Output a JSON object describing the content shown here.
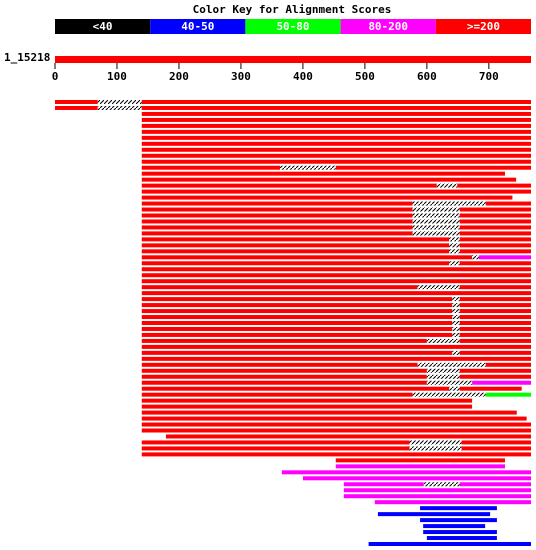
{
  "chart_data": {
    "type": "alignment",
    "title": "Color Key for Alignment Scores",
    "color_key": [
      {
        "label": "<40",
        "color": "#000000"
      },
      {
        "label": "40-50",
        "color": "#0000ff"
      },
      {
        "label": "50-80",
        "color": "#00ff00"
      },
      {
        "label": "80-200",
        "color": "#ff00ff"
      },
      {
        "label": ">=200",
        "color": "#ff0000"
      }
    ],
    "query": {
      "label": "1_15218",
      "range": [
        0,
        768
      ],
      "color": "#ff0000"
    },
    "xlim": [
      0,
      768
    ],
    "xticks": [
      0,
      100,
      200,
      300,
      400,
      500,
      600,
      700
    ],
    "rows": [
      [
        [
          0,
          69,
          "#ff0000"
        ],
        [
          140,
          768,
          "#ff0000"
        ]
      ],
      [
        [
          0,
          69,
          "#ff0000"
        ],
        [
          140,
          768,
          "#ff0000"
        ]
      ],
      [
        [
          140,
          768,
          "#ff0000"
        ]
      ],
      [
        [
          140,
          768,
          "#ff0000"
        ]
      ],
      [
        [
          140,
          768,
          "#ff0000"
        ]
      ],
      [
        [
          140,
          768,
          "#ff0000"
        ]
      ],
      [
        [
          140,
          768,
          "#ff0000"
        ]
      ],
      [
        [
          140,
          768,
          "#ff0000"
        ]
      ],
      [
        [
          140,
          768,
          "#ff0000"
        ]
      ],
      [
        [
          140,
          768,
          "#ff0000"
        ]
      ],
      [
        [
          140,
          768,
          "#ff0000"
        ]
      ],
      [
        [
          140,
          363,
          "#ff0000"
        ],
        [
          453,
          768,
          "#ff0000"
        ]
      ],
      [
        [
          140,
          726,
          "#ff0000"
        ]
      ],
      [
        [
          140,
          744,
          "#ff0000"
        ]
      ],
      [
        [
          140,
          616,
          "#ff0000"
        ],
        [
          649,
          768,
          "#ff0000"
        ]
      ],
      [
        [
          140,
          768,
          "#ff0000"
        ]
      ],
      [
        [
          140,
          738,
          "#ff0000"
        ]
      ],
      [
        [
          140,
          577,
          "#ff0000"
        ],
        [
          695,
          768,
          "#ff0000"
        ]
      ],
      [
        [
          140,
          577,
          "#ff0000"
        ],
        [
          653,
          768,
          "#ff0000"
        ]
      ],
      [
        [
          140,
          577,
          "#ff0000"
        ],
        [
          653,
          768,
          "#ff0000"
        ]
      ],
      [
        [
          140,
          577,
          "#ff0000"
        ],
        [
          653,
          768,
          "#ff0000"
        ]
      ],
      [
        [
          140,
          577,
          "#ff0000"
        ],
        [
          653,
          768,
          "#ff0000"
        ]
      ],
      [
        [
          140,
          577,
          "#ff0000"
        ],
        [
          653,
          768,
          "#ff0000"
        ]
      ],
      [
        [
          140,
          636,
          "#ff0000"
        ],
        [
          653,
          768,
          "#ff0000"
        ]
      ],
      [
        [
          140,
          636,
          "#ff0000"
        ],
        [
          653,
          768,
          "#ff0000"
        ]
      ],
      [
        [
          140,
          636,
          "#ff0000"
        ],
        [
          653,
          768,
          "#ff0000"
        ]
      ],
      [
        [
          140,
          673,
          "#ff0000"
        ],
        [
          684,
          768,
          "#ff00ff"
        ]
      ],
      [
        [
          140,
          636,
          "#ff0000"
        ],
        [
          653,
          768,
          "#ff0000"
        ]
      ],
      [
        [
          140,
          768,
          "#ff0000"
        ]
      ],
      [
        [
          140,
          768,
          "#ff0000"
        ]
      ],
      [
        [
          140,
          768,
          "#ff0000"
        ]
      ],
      [
        [
          140,
          585,
          "#ff0000"
        ],
        [
          653,
          768,
          "#ff0000"
        ]
      ],
      [
        [
          140,
          768,
          "#ff0000"
        ]
      ],
      [
        [
          140,
          641,
          "#ff0000"
        ],
        [
          653,
          768,
          "#ff0000"
        ]
      ],
      [
        [
          140,
          641,
          "#ff0000"
        ],
        [
          653,
          768,
          "#ff0000"
        ]
      ],
      [
        [
          140,
          641,
          "#ff0000"
        ],
        [
          653,
          768,
          "#ff0000"
        ]
      ],
      [
        [
          140,
          641,
          "#ff0000"
        ],
        [
          653,
          768,
          "#ff0000"
        ]
      ],
      [
        [
          140,
          641,
          "#ff0000"
        ],
        [
          653,
          768,
          "#ff0000"
        ]
      ],
      [
        [
          140,
          641,
          "#ff0000"
        ],
        [
          653,
          768,
          "#ff0000"
        ]
      ],
      [
        [
          140,
          641,
          "#ff0000"
        ],
        [
          653,
          768,
          "#ff0000"
        ]
      ],
      [
        [
          140,
          600,
          "#ff0000"
        ],
        [
          653,
          768,
          "#ff0000"
        ]
      ],
      [
        [
          140,
          768,
          "#ff0000"
        ]
      ],
      [
        [
          140,
          641,
          "#ff0000"
        ],
        [
          653,
          768,
          "#ff0000"
        ]
      ],
      [
        [
          140,
          768,
          "#ff0000"
        ]
      ],
      [
        [
          140,
          585,
          "#ff0000"
        ],
        [
          695,
          768,
          "#ff0000"
        ]
      ],
      [
        [
          140,
          600,
          "#ff0000"
        ],
        [
          653,
          768,
          "#ff0000"
        ]
      ],
      [
        [
          140,
          600,
          "#ff0000"
        ],
        [
          653,
          768,
          "#ff0000"
        ]
      ],
      [
        [
          140,
          600,
          "#ff0000"
        ],
        [
          673,
          768,
          "#ff00ff"
        ]
      ],
      [
        [
          140,
          636,
          "#ff0000"
        ],
        [
          653,
          753,
          "#ff0000"
        ]
      ],
      [
        [
          140,
          577,
          "#ff0000"
        ],
        [
          695,
          768,
          "#00ff00"
        ]
      ],
      [
        [
          140,
          673,
          "#ff0000"
        ]
      ],
      [
        [
          140,
          673,
          "#ff0000"
        ]
      ],
      [
        [
          140,
          745,
          "#ff0000"
        ]
      ],
      [
        [
          140,
          761,
          "#ff0000"
        ]
      ],
      [
        [
          140,
          768,
          "#ff0000"
        ]
      ],
      [
        [
          140,
          768,
          "#ff0000"
        ]
      ],
      [
        [
          179,
          768,
          "#ff0000"
        ]
      ],
      [
        [
          140,
          572,
          "#ff0000"
        ],
        [
          656,
          768,
          "#ff0000"
        ]
      ],
      [
        [
          140,
          572,
          "#ff0000"
        ],
        [
          656,
          768,
          "#ff0000"
        ]
      ],
      [
        [
          140,
          768,
          "#ff0000"
        ]
      ],
      [
        [
          453,
          726,
          "#ff0000"
        ]
      ],
      [
        [
          453,
          726,
          "#ff00ff"
        ]
      ],
      [
        [
          366,
          768,
          "#ff00ff"
        ]
      ],
      [
        [
          400,
          768,
          "#ff00ff"
        ]
      ],
      [
        [
          466,
          595,
          "#ff00ff"
        ],
        [
          653,
          768,
          "#ff00ff"
        ]
      ],
      [
        [
          466,
          768,
          "#ff00ff"
        ]
      ],
      [
        [
          466,
          768,
          "#ff00ff"
        ]
      ],
      [
        [
          516,
          768,
          "#ff00ff"
        ]
      ],
      [
        [
          589,
          713,
          "#0000ff"
        ]
      ],
      [
        [
          521,
          702,
          "#0000ff"
        ]
      ],
      [
        [
          589,
          713,
          "#0000ff"
        ]
      ],
      [
        [
          594,
          694,
          "#0000ff"
        ]
      ],
      [
        [
          594,
          713,
          "#0000ff"
        ]
      ],
      [
        [
          600,
          713,
          "#0000ff"
        ]
      ],
      [
        [
          506,
          768,
          "#0000ff"
        ]
      ]
    ]
  }
}
